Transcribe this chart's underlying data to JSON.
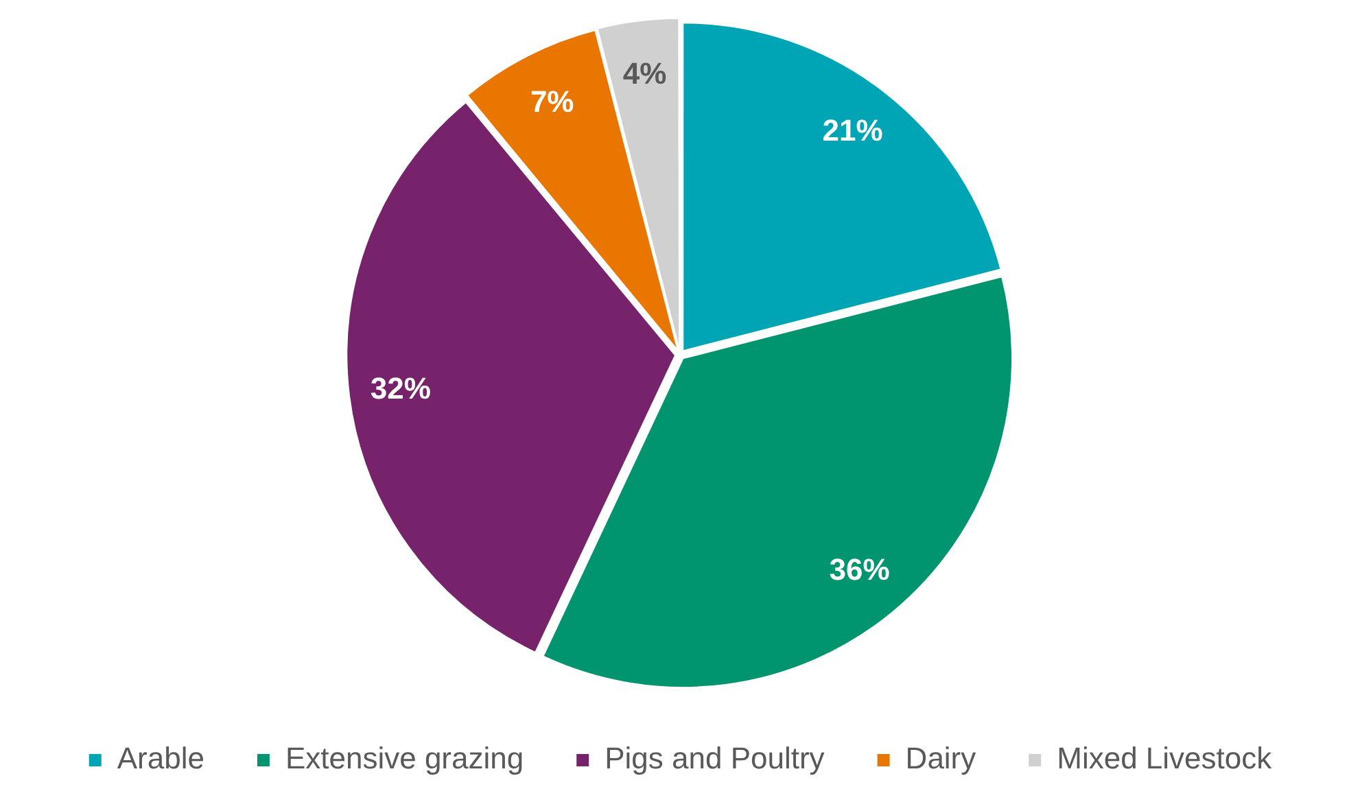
{
  "chart_data": {
    "type": "pie",
    "categories": [
      "Arable",
      "Extensive grazing",
      "Pigs and Poultry",
      "Dairy",
      "Mixed Livestock"
    ],
    "values": [
      21,
      36,
      32,
      7,
      4
    ],
    "colors": [
      "#00a5b5",
      "#00956e",
      "#76236b",
      "#e87600",
      "#d0d0d0"
    ],
    "value_labels": [
      "21%",
      "36%",
      "32%",
      "7%",
      "4%"
    ],
    "legend": "bottom"
  }
}
